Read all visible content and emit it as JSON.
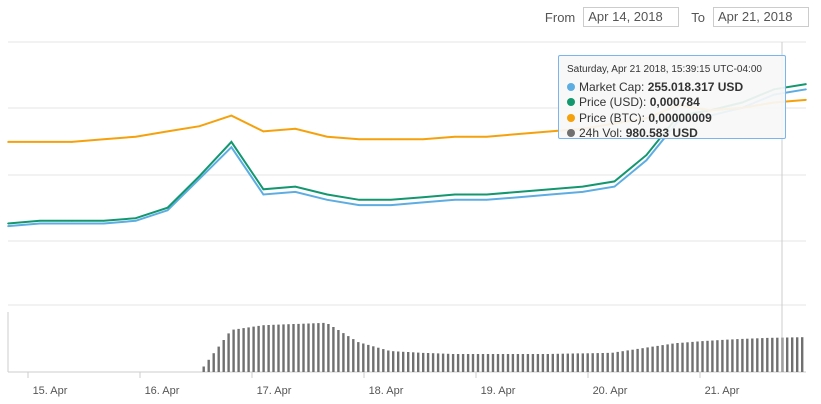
{
  "range": {
    "from_label": "From",
    "from_value": "Apr 14, 2018",
    "to_label": "To",
    "to_value": "Apr 21, 2018"
  },
  "tooltip": {
    "header": "Saturday, Apr 21 2018, 15:39:15 UTC-04:00",
    "rows": [
      {
        "name": "Market Cap",
        "value": "255.018.317 USD",
        "color": "#5dade2"
      },
      {
        "name": "Price (USD)",
        "value": "0,000784",
        "color": "#13976e"
      },
      {
        "name": "Price (BTC)",
        "value": "0,00000009",
        "color": "#f5a10c"
      },
      {
        "name": "24h Vol",
        "value": "980.583 USD",
        "color": "#707070"
      }
    ]
  },
  "chart_data": {
    "type": "line",
    "x_ticks": [
      "15. Apr",
      "16. Apr",
      "17. Apr",
      "18. Apr",
      "19. Apr",
      "20. Apr",
      "21. Apr"
    ],
    "x": [
      "Apr 14 18:00",
      "Apr 15",
      "Apr 15 12:00",
      "Apr 16",
      "Apr 16 12:00",
      "Apr 16 18:00",
      "Apr 16 22:00",
      "Apr 17",
      "Apr 17 06:00",
      "Apr 17 12:00",
      "Apr 17 18:00",
      "Apr 18",
      "Apr 18 06:00",
      "Apr 18 12:00",
      "Apr 18 18:00",
      "Apr 19",
      "Apr 19 12:00",
      "Apr 20",
      "Apr 20 06:00",
      "Apr 20 12:00",
      "Apr 20 16:00",
      "Apr 20 20:00",
      "Apr 21",
      "Apr 21 06:00",
      "Apr 21 12:00",
      "Apr 21 16:00"
    ],
    "series": [
      {
        "name": "Market Cap",
        "color": "#5dade2",
        "values": [
          30,
          31,
          31,
          31,
          32,
          36,
          48,
          60,
          42,
          43,
          40,
          38,
          38,
          39,
          40,
          40,
          41,
          42,
          43,
          45,
          55,
          70,
          72,
          75,
          80,
          82
        ]
      },
      {
        "name": "Price (USD)",
        "color": "#13976e",
        "values": [
          31,
          32,
          32,
          32,
          33,
          37,
          49,
          62,
          44,
          45,
          42,
          40,
          40,
          41,
          42,
          42,
          43,
          44,
          45,
          47,
          57,
          72,
          74,
          77,
          82,
          84
        ]
      },
      {
        "name": "Price (BTC)",
        "color": "#f5a10c",
        "values": [
          62,
          62,
          62,
          63,
          64,
          66,
          68,
          72,
          66,
          67,
          64,
          63,
          63,
          63,
          64,
          64,
          65,
          66,
          67,
          69,
          71,
          76,
          74,
          75,
          77,
          78
        ]
      },
      {
        "name": "24h Vol",
        "color": "#707070",
        "values": [
          0,
          0,
          0,
          0,
          0,
          0,
          0,
          70,
          78,
          80,
          82,
          50,
          35,
          32,
          30,
          30,
          30,
          30,
          31,
          32,
          40,
          48,
          52,
          55,
          57,
          58
        ]
      }
    ]
  }
}
